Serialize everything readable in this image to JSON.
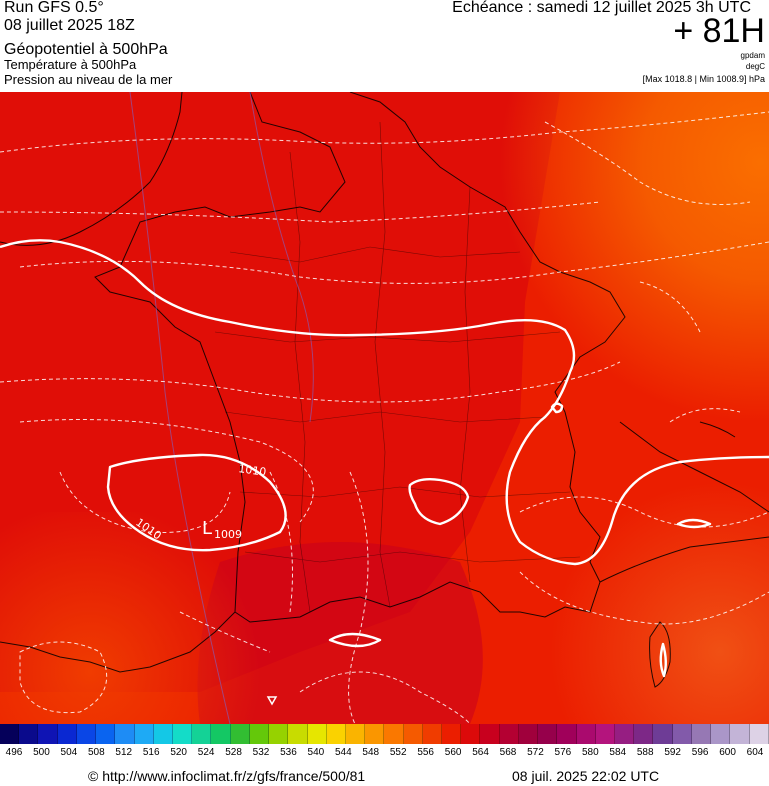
{
  "header": {
    "run": "Run GFS 0.5°",
    "date": "08 juillet 2025 18Z",
    "geopotential": "Géopotentiel à 500hPa",
    "temperature": "Température à 500hPa",
    "pressure": "Pression au niveau de la mer",
    "echeance": "Echéance : samedi 12 juillet 2025 3h UTC",
    "hour": "+ 81H",
    "unit_gpdam": "gpdam",
    "unit_degc": "degC",
    "maxmin": "[Max 1018.8 | Min 1008.9] hPa"
  },
  "map": {
    "contour_labels": [
      "1010",
      "1010",
      "1009"
    ],
    "low_marker": "L",
    "low_value": "1009"
  },
  "colorscale": {
    "ticks": [
      "496",
      "500",
      "504",
      "508",
      "512",
      "516",
      "520",
      "524",
      "528",
      "532",
      "536",
      "540",
      "544",
      "548",
      "552",
      "556",
      "560",
      "564",
      "568",
      "572",
      "576",
      "580",
      "584",
      "588",
      "592",
      "596",
      "600",
      "604"
    ],
    "colors": [
      "#05005a",
      "#0a0a8c",
      "#0f14b4",
      "#0a28d2",
      "#0a46e6",
      "#0a64f0",
      "#1e8cf5",
      "#1eaaf5",
      "#14c8e6",
      "#14dcc8",
      "#14d296",
      "#14c864",
      "#32be32",
      "#64c80a",
      "#96d200",
      "#c8dc00",
      "#e6e600",
      "#fad200",
      "#fab400",
      "#fa9600",
      "#fa7800",
      "#f55a00",
      "#f03c00",
      "#eb1e00",
      "#dc0a0a",
      "#c8001e",
      "#b40032",
      "#a0003c",
      "#96004b",
      "#a0005a",
      "#aa0a6e",
      "#b4147d",
      "#961e82",
      "#7d2887",
      "#6e3c96",
      "#825aaa",
      "#9678b4",
      "#aa96c8",
      "#c3b4d7",
      "#ddd2e6"
    ]
  },
  "footer": {
    "url": "© http://www.infoclimat.fr/z/gfs/france/500/81",
    "generated": "08 juil. 2025 22:02 UTC"
  }
}
